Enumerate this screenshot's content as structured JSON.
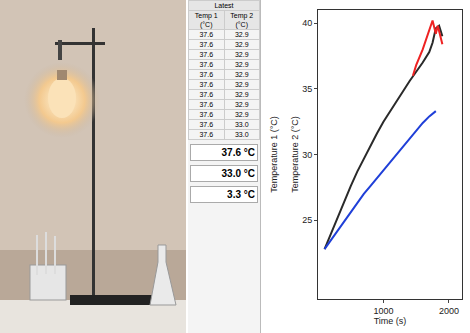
{
  "chart_data": {
    "type": "line",
    "xlabel": "Time (s)",
    "ylabel": "Temperature 2 (°C)",
    "annotations": [
      {
        "text": "Temperature 1 (°C)"
      }
    ],
    "xlim": [
      0,
      2200
    ],
    "xticks": [
      1000,
      2000
    ],
    "ylim": [
      19,
      41
    ],
    "yticks": [
      25,
      30,
      35,
      40
    ],
    "grid": false,
    "series": [
      {
        "color": "#2a2a2a",
        "x": [
          100,
          200,
          300,
          400,
          500,
          600,
          700,
          800,
          900,
          1000,
          1100,
          1200,
          1300,
          1400,
          1500,
          1600,
          1700,
          1750,
          1800,
          1850,
          1900
        ],
        "values": [
          22.8,
          24.0,
          25.3,
          26.5,
          27.6,
          28.7,
          29.7,
          30.7,
          31.6,
          32.5,
          33.3,
          34.1,
          34.9,
          35.6,
          36.3,
          37.0,
          37.8,
          38.5,
          39.6,
          39.8,
          39.0
        ]
      },
      {
        "color": "#ee2222",
        "x": [
          1450,
          1500,
          1600,
          1700,
          1750,
          1800,
          1830,
          1900
        ],
        "values": [
          36.0,
          36.8,
          38.0,
          39.5,
          40.2,
          39.2,
          39.8,
          38.4
        ]
      },
      {
        "color": "#1f3fd8",
        "x": [
          100,
          200,
          300,
          400,
          500,
          600,
          700,
          800,
          900,
          1000,
          1100,
          1200,
          1300,
          1400,
          1500,
          1600,
          1700,
          1800
        ],
        "values": [
          22.8,
          23.5,
          24.2,
          24.9,
          25.6,
          26.3,
          27.0,
          27.6,
          28.2,
          28.8,
          29.4,
          30.0,
          30.6,
          31.2,
          31.8,
          32.4,
          32.9,
          33.3
        ]
      }
    ]
  },
  "panel": {
    "table": {
      "header": "Latest",
      "columns": [
        "Temp 1 (°C)",
        "Temp 2 (°C)"
      ],
      "rows": [
        [
          "37.6",
          "32.9"
        ],
        [
          "37.6",
          "32.9"
        ],
        [
          "37.6",
          "32.9"
        ],
        [
          "37.6",
          "32.9"
        ],
        [
          "37.6",
          "32.9"
        ],
        [
          "37.6",
          "32.9"
        ],
        [
          "37.6",
          "32.9"
        ],
        [
          "37.6",
          "32.9"
        ],
        [
          "37.6",
          "32.9"
        ],
        [
          "37.6",
          "33.0"
        ],
        [
          "37.6",
          "33.0"
        ]
      ]
    },
    "readouts": [
      "37.6 °C",
      "33.0 °C",
      "3.3 °C"
    ]
  }
}
